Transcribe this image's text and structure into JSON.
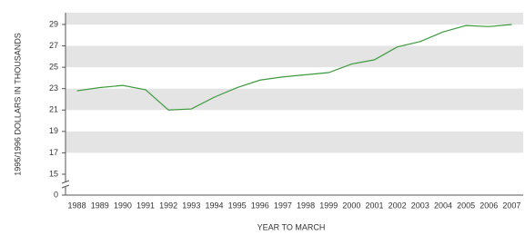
{
  "chart_data": {
    "type": "line",
    "y_label": "1995/1996 DOLLARS IN THOUSANDS",
    "x_label": "YEAR TO MARCH",
    "categories": [
      "1988",
      "1989",
      "1990",
      "1991",
      "1992",
      "1993",
      "1994",
      "1995",
      "1996",
      "1997",
      "1998",
      "1999",
      "2000",
      "2001",
      "2002",
      "2003",
      "2004",
      "2005",
      "2006",
      "2007"
    ],
    "series": [
      {
        "color": "#3c9a3c",
        "values": [
          22.8,
          23.1,
          23.3,
          22.9,
          21.0,
          21.1,
          22.2,
          23.1,
          23.8,
          24.1,
          24.3,
          24.5,
          25.3,
          25.7,
          26.9,
          27.4,
          28.3,
          28.9,
          28.8,
          29.0
        ]
      }
    ],
    "ylim": [
      15,
      30.1
    ],
    "yticks": [
      0,
      15,
      17,
      19,
      21,
      23,
      25,
      27,
      29
    ],
    "axis_break": true,
    "band_color": "#e4e4e4"
  }
}
